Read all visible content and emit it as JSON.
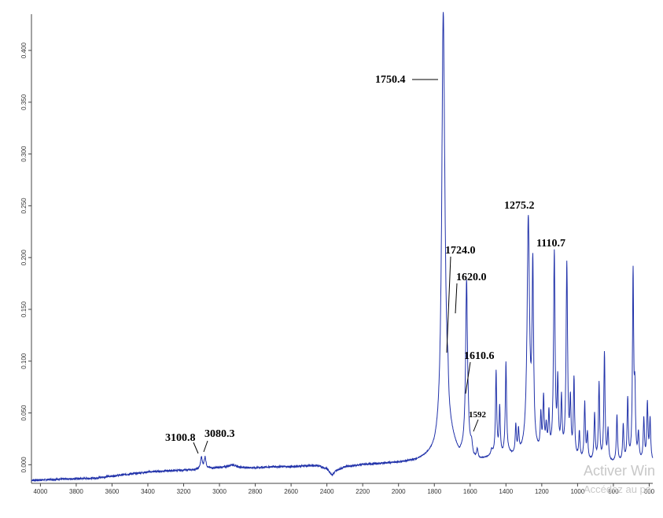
{
  "header_fragment": "",
  "watermark": {
    "line1": "Activer Win",
    "line2": "Accédez au pa"
  },
  "chart_data": {
    "type": "line",
    "title": "",
    "xlabel": "",
    "ylabel": "",
    "x_reversed": true,
    "xlim": [
      4050,
      580
    ],
    "ylim": [
      -0.018,
      0.435
    ],
    "grid": false,
    "line_color": "#2233aa",
    "x_ticks": [
      4000,
      3800,
      3600,
      3400,
      3200,
      3000,
      2800,
      2600,
      2400,
      2200,
      2000,
      1800,
      1600,
      1400,
      1200,
      1000,
      800,
      600
    ],
    "x_tick_labels": [
      "4000",
      "3800",
      "3600",
      "3400",
      "3200",
      "3000",
      "2800",
      "2600",
      "2400",
      "2200",
      "2000",
      "1800",
      "1600",
      "1400",
      "1200",
      "1000",
      "800",
      "600"
    ],
    "y_ticks": [
      0.0,
      0.05,
      0.1,
      0.15,
      0.2,
      0.25,
      0.3,
      0.35,
      0.4
    ],
    "y_tick_labels": [
      "0.000",
      "0.050",
      "0.100",
      "0.150",
      "0.200",
      "0.250",
      "0.300",
      "0.350",
      "0.400"
    ],
    "baseline": [
      [
        4050,
        -0.015
      ],
      [
        3900,
        -0.014
      ],
      [
        3700,
        -0.013
      ],
      [
        3600,
        -0.011
      ],
      [
        3500,
        -0.009
      ],
      [
        3400,
        -0.007
      ],
      [
        3300,
        -0.006
      ],
      [
        3150,
        -0.005
      ],
      [
        3000,
        -0.003
      ],
      [
        2900,
        -0.003
      ],
      [
        2800,
        -0.003
      ],
      [
        2700,
        -0.002
      ],
      [
        2600,
        -0.002
      ],
      [
        2500,
        -0.001
      ],
      [
        2450,
        -0.001
      ],
      [
        2400,
        -0.004
      ],
      [
        2370,
        -0.01
      ],
      [
        2350,
        -0.006
      ],
      [
        2300,
        -0.002
      ],
      [
        2200,
        0.0
      ],
      [
        2100,
        0.001
      ],
      [
        2000,
        0.002
      ],
      [
        1950,
        0.003
      ],
      [
        1900,
        0.004
      ],
      [
        1850,
        0.007
      ],
      [
        1800,
        0.011
      ],
      [
        1780,
        0.016
      ],
      [
        1760,
        0.024
      ],
      [
        1740,
        0.06
      ],
      [
        1720,
        0.03
      ],
      [
        1700,
        0.022
      ],
      [
        1680,
        0.014
      ],
      [
        1660,
        0.008
      ],
      [
        1640,
        0.012
      ],
      [
        1620,
        0.02
      ],
      [
        1600,
        0.013
      ],
      [
        1580,
        0.005
      ],
      [
        1560,
        0.003
      ],
      [
        1540,
        0.004
      ],
      [
        1500,
        0.006
      ],
      [
        1470,
        0.008
      ],
      [
        1440,
        0.008
      ],
      [
        1420,
        0.007
      ],
      [
        1400,
        0.012
      ],
      [
        1370,
        0.008
      ],
      [
        1340,
        0.006
      ],
      [
        1300,
        0.01
      ],
      [
        1260,
        0.015
      ],
      [
        1240,
        0.01
      ],
      [
        1200,
        0.008
      ],
      [
        1180,
        0.012
      ],
      [
        1150,
        0.008
      ],
      [
        1120,
        0.006
      ],
      [
        1100,
        0.009
      ],
      [
        1080,
        0.007
      ],
      [
        1050,
        0.005
      ],
      [
        1000,
        0.004
      ],
      [
        950,
        0.002
      ],
      [
        900,
        0.002
      ],
      [
        850,
        0.001
      ],
      [
        800,
        0.001
      ],
      [
        750,
        0.001
      ],
      [
        700,
        0.001
      ],
      [
        650,
        0.002
      ],
      [
        620,
        0.002
      ],
      [
        600,
        0.002
      ]
    ],
    "peaks": [
      [
        3100.8,
        0.011,
        6
      ],
      [
        3080.3,
        0.011,
        6
      ],
      [
        2930,
        0.003,
        25
      ],
      [
        1750.4,
        0.395,
        10
      ],
      [
        1724.0,
        0.022,
        4
      ],
      [
        1620.0,
        0.155,
        6
      ],
      [
        1610.6,
        0.01,
        3
      ],
      [
        1592,
        0.008,
        5
      ],
      [
        1560,
        0.01,
        5
      ],
      [
        1480,
        0.005,
        5
      ],
      [
        1455,
        0.08,
        4
      ],
      [
        1435,
        0.045,
        4
      ],
      [
        1400,
        0.085,
        4
      ],
      [
        1345,
        0.028,
        4
      ],
      [
        1330,
        0.022,
        4
      ],
      [
        1275.2,
        0.22,
        8
      ],
      [
        1250,
        0.17,
        5
      ],
      [
        1205,
        0.035,
        4
      ],
      [
        1190,
        0.05,
        4
      ],
      [
        1175,
        0.02,
        4
      ],
      [
        1160,
        0.035,
        4
      ],
      [
        1130,
        0.195,
        5
      ],
      [
        1110.7,
        0.065,
        4
      ],
      [
        1090,
        0.05,
        4
      ],
      [
        1060,
        0.185,
        5
      ],
      [
        1040,
        0.05,
        4
      ],
      [
        1020,
        0.075,
        4
      ],
      [
        990,
        0.025,
        4
      ],
      [
        960,
        0.055,
        4
      ],
      [
        945,
        0.025,
        4
      ],
      [
        905,
        0.045,
        4
      ],
      [
        880,
        0.075,
        4
      ],
      [
        850,
        0.105,
        4
      ],
      [
        830,
        0.03,
        4
      ],
      [
        780,
        0.045,
        4
      ],
      [
        745,
        0.035,
        4
      ],
      [
        720,
        0.06,
        4
      ],
      [
        690,
        0.18,
        4
      ],
      [
        680,
        0.06,
        4
      ],
      [
        660,
        0.025,
        4
      ],
      [
        630,
        0.04,
        4
      ],
      [
        610,
        0.055,
        4
      ],
      [
        595,
        0.04,
        4
      ]
    ],
    "annotations": [
      {
        "text": "1750.4",
        "x": 1750.4,
        "y": 0.397,
        "small": false
      },
      {
        "text": "1724.0",
        "x": 1724.0,
        "y": 0.092,
        "small": false
      },
      {
        "text": "1620.0",
        "x": 1620.0,
        "y": 0.155,
        "small": false
      },
      {
        "text": "1610.6",
        "x": 1610.6,
        "y": 0.052,
        "small": false
      },
      {
        "text": "1592",
        "x": 1592,
        "y": 0.018,
        "small": true
      },
      {
        "text": "1275.2",
        "x": 1275.2,
        "y": 0.243,
        "small": false
      },
      {
        "text": "1110.7",
        "x": 1110.7,
        "y": 0.215,
        "small": false
      },
      {
        "text": "3100.8",
        "x": 3100.8,
        "y": 0.013,
        "small": false
      },
      {
        "text": "3080.3",
        "x": 3080.3,
        "y": 0.015,
        "small": false
      }
    ]
  }
}
